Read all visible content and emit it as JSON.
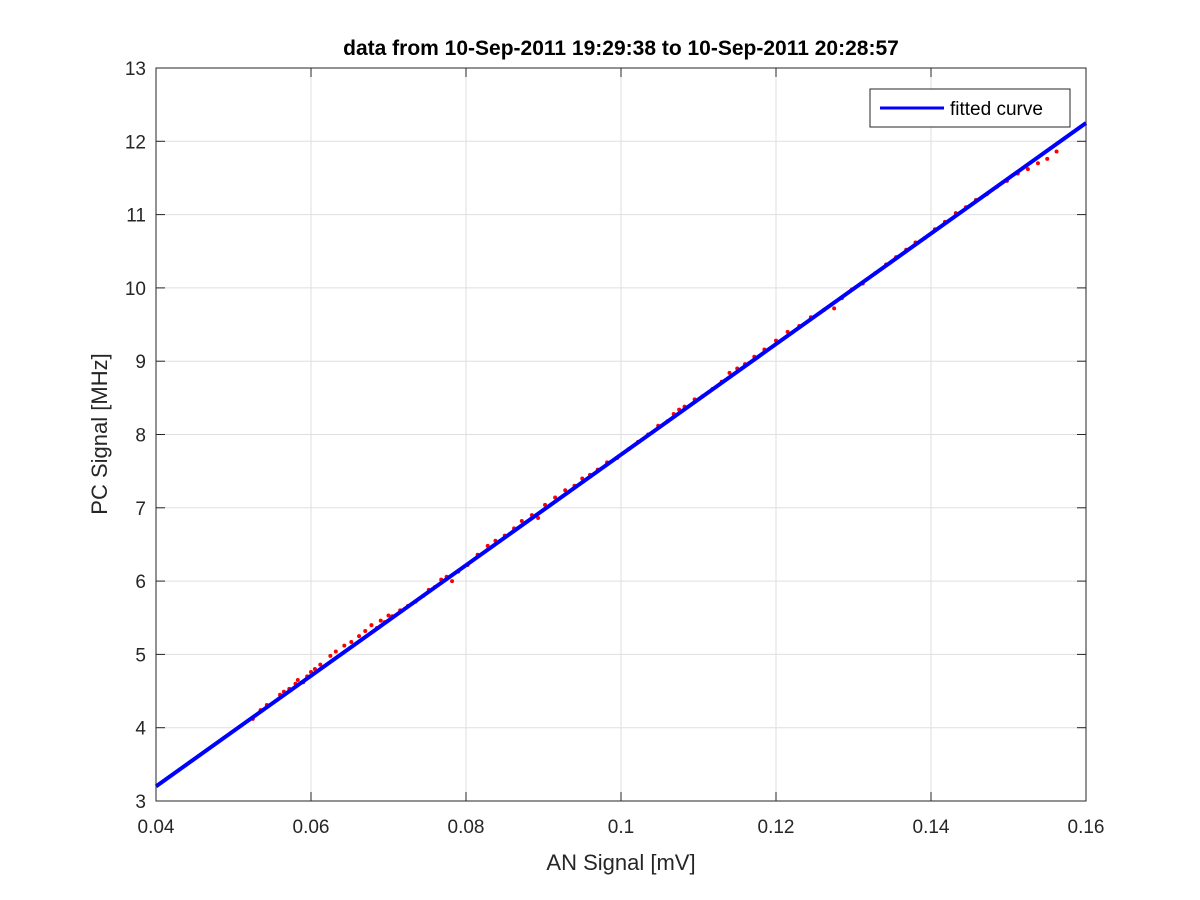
{
  "chart_data": {
    "type": "scatter",
    "title": "data from 10-Sep-2011 19:29:38 to 10-Sep-2011 20:28:57",
    "xlabel": "AN Signal [mV]",
    "ylabel": "PC Signal [MHz]",
    "xlim": [
      0.04,
      0.16
    ],
    "ylim": [
      3,
      13
    ],
    "xticks": [
      0.04,
      0.06,
      0.08,
      0.1,
      0.12,
      0.14,
      0.16
    ],
    "xtick_labels": [
      "0.04",
      "0.06",
      "0.08",
      "0.1",
      "0.12",
      "0.14",
      "0.16"
    ],
    "yticks": [
      3,
      4,
      5,
      6,
      7,
      8,
      9,
      10,
      11,
      12,
      13
    ],
    "ytick_labels": [
      "3",
      "4",
      "5",
      "6",
      "7",
      "8",
      "9",
      "10",
      "11",
      "12",
      "13"
    ],
    "grid": true,
    "legend_position": "top-right",
    "series": [
      {
        "kind": "points",
        "color": "#ff0000",
        "x": [
          0.0525,
          0.0535,
          0.0543,
          0.056,
          0.0565,
          0.0572,
          0.058,
          0.0583,
          0.059,
          0.0595,
          0.06,
          0.0605,
          0.0612,
          0.0625,
          0.0632,
          0.0643,
          0.0652,
          0.0662,
          0.067,
          0.0678,
          0.0685,
          0.069,
          0.0695,
          0.07,
          0.0705,
          0.0715,
          0.0725,
          0.0735,
          0.0745,
          0.0752,
          0.076,
          0.0768,
          0.0775,
          0.0782,
          0.079,
          0.0802,
          0.0815,
          0.0828,
          0.0838,
          0.085,
          0.0862,
          0.0872,
          0.0885,
          0.0893,
          0.0902,
          0.0915,
          0.0928,
          0.094,
          0.095,
          0.096,
          0.097,
          0.0982,
          0.0995,
          0.101,
          0.1022,
          0.1035,
          0.1048,
          0.106,
          0.1068,
          0.1075,
          0.1082,
          0.1095,
          0.1105,
          0.1118,
          0.113,
          0.114,
          0.115,
          0.116,
          0.1172,
          0.1185,
          0.12,
          0.1215,
          0.123,
          0.1245,
          0.1262,
          0.1275,
          0.1285,
          0.1298,
          0.1312,
          0.1328,
          0.1342,
          0.1355,
          0.1368,
          0.138,
          0.1392,
          0.1405,
          0.1418,
          0.1432,
          0.1445,
          0.1458,
          0.1472,
          0.1485,
          0.1498,
          0.1512,
          0.1525,
          0.1538,
          0.155,
          0.1562
        ],
        "y": [
          4.12,
          4.24,
          4.31,
          4.45,
          4.49,
          4.53,
          4.6,
          4.65,
          4.62,
          4.7,
          4.76,
          4.8,
          4.86,
          4.98,
          5.04,
          5.12,
          5.17,
          5.25,
          5.32,
          5.4,
          5.36,
          5.46,
          5.44,
          5.53,
          5.52,
          5.6,
          5.66,
          5.72,
          5.8,
          5.88,
          5.92,
          6.02,
          6.06,
          6.0,
          6.13,
          6.22,
          6.36,
          6.48,
          6.55,
          6.62,
          6.72,
          6.82,
          6.9,
          6.86,
          7.04,
          7.14,
          7.24,
          7.3,
          7.4,
          7.45,
          7.52,
          7.62,
          7.68,
          7.8,
          7.9,
          8.0,
          8.12,
          8.18,
          8.28,
          8.34,
          8.38,
          8.48,
          8.52,
          8.62,
          8.72,
          8.84,
          8.9,
          8.96,
          9.06,
          9.16,
          9.28,
          9.4,
          9.48,
          9.6,
          9.7,
          9.72,
          9.86,
          9.98,
          10.06,
          10.2,
          10.32,
          10.42,
          10.52,
          10.62,
          10.68,
          10.8,
          10.9,
          11.02,
          11.1,
          11.2,
          11.28,
          11.38,
          11.46,
          11.56,
          11.62,
          11.7,
          11.76,
          11.86
        ]
      },
      {
        "name": "fitted curve",
        "kind": "line",
        "color": "#0000ff",
        "x": [
          0.04,
          0.16
        ],
        "y": [
          3.2,
          12.25
        ]
      }
    ]
  }
}
